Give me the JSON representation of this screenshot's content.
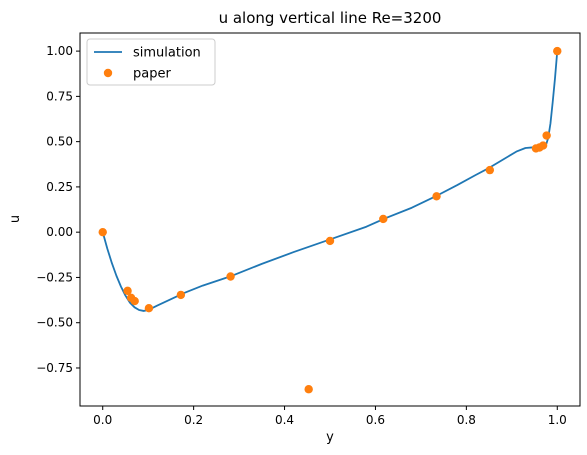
{
  "chart_data": {
    "type": "line",
    "title": "u along vertical line Re=3200",
    "xlabel": "y",
    "ylabel": "u",
    "xlim": [
      -0.05,
      1.05
    ],
    "ylim": [
      -0.96,
      1.1
    ],
    "xticks": [
      0.0,
      0.2,
      0.4,
      0.6,
      0.8,
      1.0
    ],
    "xtick_labels": [
      "0.0",
      "0.2",
      "0.4",
      "0.6",
      "0.8",
      "1.0"
    ],
    "yticks": [
      -0.75,
      -0.5,
      -0.25,
      0.0,
      0.25,
      0.5,
      0.75,
      1.0
    ],
    "ytick_labels": [
      "−0.75",
      "−0.50",
      "−0.25",
      "0.00",
      "0.25",
      "0.50",
      "0.75",
      "1.00"
    ],
    "grid": false,
    "legend_position": "upper-left",
    "series": [
      {
        "name": "simulation",
        "kind": "line",
        "color": "#1f77b4",
        "x": [
          0.0,
          0.01,
          0.02,
          0.03,
          0.04,
          0.05,
          0.06,
          0.07,
          0.08,
          0.09,
          0.1,
          0.12,
          0.15,
          0.18,
          0.22,
          0.28,
          0.35,
          0.42,
          0.5,
          0.58,
          0.62,
          0.68,
          0.73,
          0.78,
          0.82,
          0.85,
          0.88,
          0.91,
          0.93,
          0.945,
          0.955,
          0.965,
          0.975,
          0.98,
          0.985,
          0.99,
          0.995,
          1.0
        ],
        "y": [
          0.0,
          -0.09,
          -0.17,
          -0.24,
          -0.3,
          -0.35,
          -0.39,
          -0.415,
          -0.43,
          -0.435,
          -0.43,
          -0.405,
          -0.37,
          -0.335,
          -0.295,
          -0.245,
          -0.175,
          -0.11,
          -0.04,
          0.03,
          0.075,
          0.135,
          0.195,
          0.26,
          0.315,
          0.355,
          0.4,
          0.445,
          0.465,
          0.468,
          0.46,
          0.455,
          0.48,
          0.52,
          0.6,
          0.72,
          0.85,
          1.0
        ]
      },
      {
        "name": "paper",
        "kind": "scatter",
        "color": "#ff7f0e",
        "x": [
          0.0,
          0.0547,
          0.0625,
          0.0703,
          0.1016,
          0.1719,
          0.2813,
          0.4531,
          0.5,
          0.6172,
          0.7344,
          0.8516,
          0.9531,
          0.9609,
          0.9688,
          0.9766,
          1.0
        ],
        "y": [
          0.0,
          -0.3241,
          -0.3624,
          -0.3805,
          -0.4199,
          -0.3464,
          -0.2448,
          -0.8674,
          -0.0485,
          0.0731,
          0.1981,
          0.3428,
          0.4624,
          0.4677,
          0.4782,
          0.5338,
          1.0
        ]
      }
    ]
  }
}
